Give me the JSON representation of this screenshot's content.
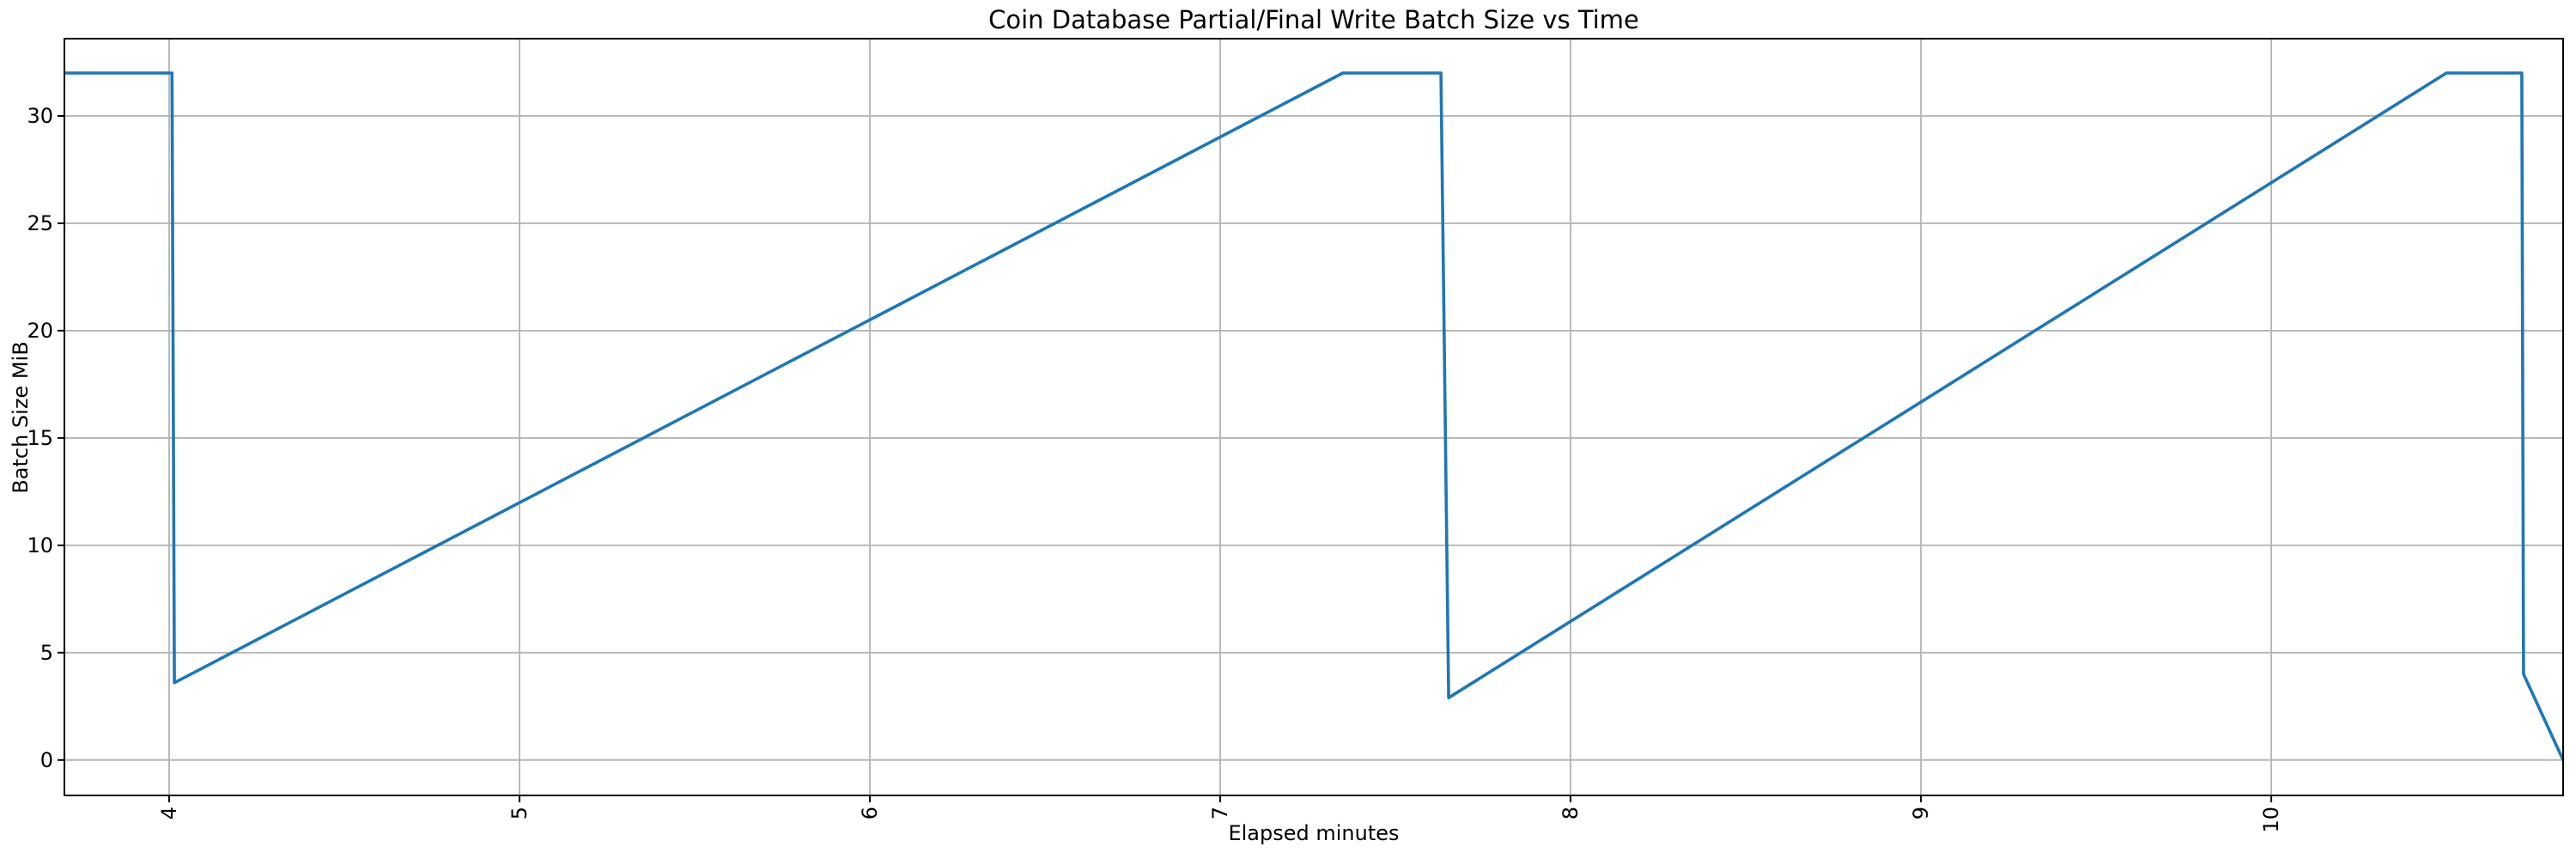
{
  "figure": {
    "background": "#ffffff"
  },
  "chart_data": {
    "type": "line",
    "title": "Coin Database Partial/Final Write Batch Size vs Time",
    "xlabel": "Elapsed minutes",
    "ylabel": "Batch Size MiB",
    "xlim": [
      3.701,
      10.833
    ],
    "ylim": [
      -1.65,
      33.6
    ],
    "xticks": [
      4,
      5,
      6,
      7,
      8,
      9,
      10
    ],
    "yticks": [
      0,
      5,
      10,
      15,
      20,
      25,
      30
    ],
    "x_tick_rotation_deg": 90,
    "grid": true,
    "legend": null,
    "axis_color": "#000000",
    "grid_color": "#b5b5b5",
    "line_color": "#1f77b4",
    "series": [
      {
        "name": "batch-size-mib",
        "color": "#1f77b4",
        "points": [
          [
            3.701,
            32.0
          ],
          [
            4.008,
            32.0
          ],
          [
            4.015,
            3.6
          ],
          [
            7.35,
            32.0
          ],
          [
            7.63,
            32.0
          ],
          [
            7.652,
            2.9
          ],
          [
            10.5,
            32.0
          ],
          [
            10.715,
            32.0
          ],
          [
            10.72,
            4.0
          ],
          [
            10.833,
            0.0
          ]
        ]
      }
    ]
  }
}
